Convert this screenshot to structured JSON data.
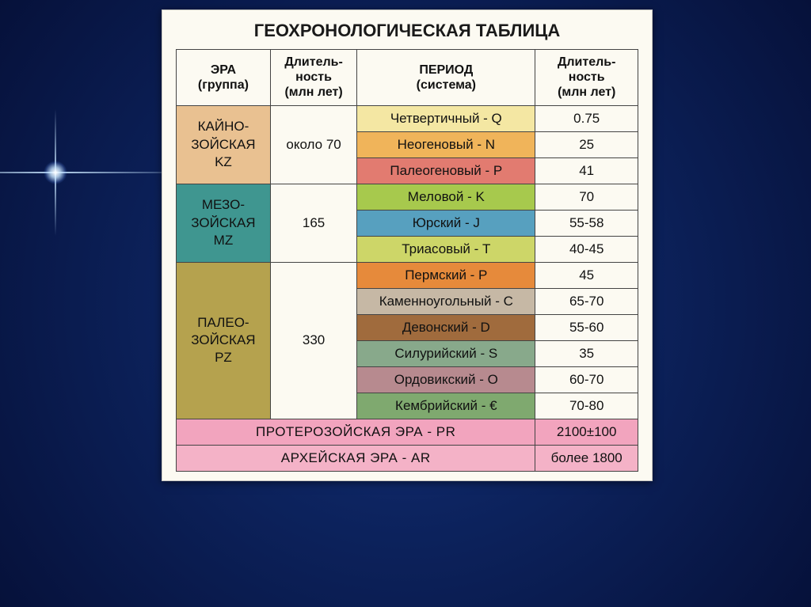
{
  "title": "ГЕОХРОНОЛОГИЧЕСКАЯ ТАБЛИЦА",
  "columns": {
    "era": {
      "line1": "ЭРА",
      "line2": "(группа)"
    },
    "era_dur": {
      "line1": "Длитель-",
      "line2": "ность",
      "line3": "(млн лет)"
    },
    "period": {
      "line1": "ПЕРИОД",
      "line2": "(система)"
    },
    "period_dur": {
      "line1": "Длитель-",
      "line2": "ность",
      "line3": "(млн лет)"
    }
  },
  "eras": [
    {
      "name_l1": "КАЙНО-",
      "name_l2": "ЗОЙСКАЯ",
      "name_l3": "KZ",
      "duration": "около 70",
      "era_bg": "#e9c191",
      "periods": [
        {
          "label": "Четвертичный - Q",
          "duration": "0.75",
          "bg": "#f4e7a3"
        },
        {
          "label": "Неогеновый - N",
          "duration": "25",
          "bg": "#f0b45a"
        },
        {
          "label": "Палеогеновый - P",
          "duration": "41",
          "bg": "#e27b70"
        }
      ]
    },
    {
      "name_l1": "МЕЗО-",
      "name_l2": "ЗОЙСКАЯ",
      "name_l3": "MZ",
      "duration": "165",
      "era_bg": "#3f9690",
      "periods": [
        {
          "label": "Меловой - K",
          "duration": "70",
          "bg": "#a7c94d"
        },
        {
          "label": "Юрский - J",
          "duration": "55-58",
          "bg": "#57a0bf"
        },
        {
          "label": "Триасовый - T",
          "duration": "40-45",
          "bg": "#cdd668"
        }
      ]
    },
    {
      "name_l1": "ПАЛЕО-",
      "name_l2": "ЗОЙСКАЯ",
      "name_l3": "PZ",
      "duration": "330",
      "era_bg": "#b5a24e",
      "periods": [
        {
          "label": "Пермский - P",
          "duration": "45",
          "bg": "#e68a3b"
        },
        {
          "label": "Каменноугольный - C",
          "duration": "65-70",
          "bg": "#c6b8a5"
        },
        {
          "label": "Девонский - D",
          "duration": "55-60",
          "bg": "#a06b3d"
        },
        {
          "label": "Силурийский - S",
          "duration": "35",
          "bg": "#88a98b"
        },
        {
          "label": "Ордовикский - O",
          "duration": "60-70",
          "bg": "#b78a8f"
        },
        {
          "label": "Кембрийский - €",
          "duration": "70-80",
          "bg": "#7fa96f"
        }
      ]
    }
  ],
  "bottom_rows": [
    {
      "label": "ПРОТЕРОЗОЙСКАЯ ЭРА   -   PR",
      "duration": "2100±100",
      "bg": "#f2a4be"
    },
    {
      "label": "АРХЕЙСКАЯ ЭРА   -   AR",
      "duration": "более 1800",
      "bg": "#f4b2c7"
    }
  ],
  "style": {
    "panel_bg": "#fcfaf2",
    "border_color": "#444444",
    "text_color": "#111111",
    "duration_col_bg": "#fcfaf2"
  }
}
